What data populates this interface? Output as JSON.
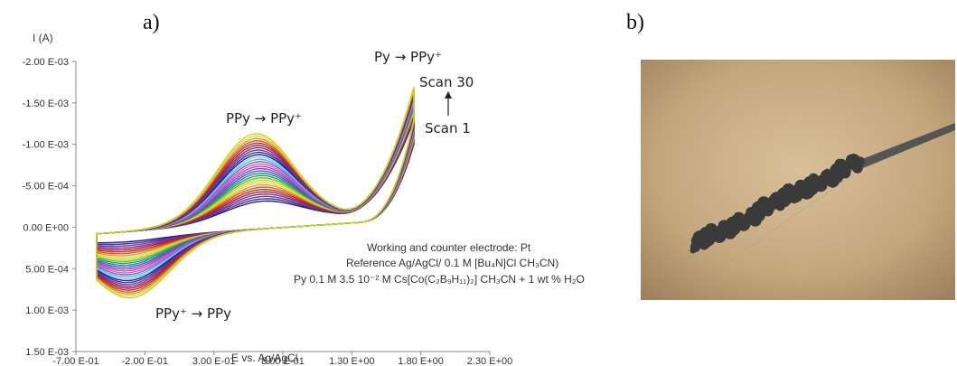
{
  "panels": {
    "a": "a)",
    "b": "b)"
  },
  "chart_data": {
    "type": "line",
    "ylabel": "I (A)",
    "xlabel": "E vs. Ag/AgCl",
    "x_ticks": [
      "-7.00 E-01",
      "-2.00 E-01",
      "3.00 E-01",
      "8.00 E-01",
      "1.30 E+00",
      "1.80 E+00",
      "2.30 E+00"
    ],
    "y_ticks": [
      "-2.00 E-03",
      "-1.50 E-03",
      "-1.00 E-03",
      "-5.00 E-04",
      "0.00 E+00",
      "5.00 E-04",
      "1.00 E-03",
      "1.50 E-03"
    ],
    "xlim": [
      -0.7,
      2.3
    ],
    "ylim": [
      -0.002,
      0.0015
    ],
    "y_axis_inverted": true,
    "scans": {
      "first": 1,
      "last": 30
    },
    "scan_colors": [
      "#1f1f8f",
      "#3a2fa8",
      "#5a3aa8",
      "#8a2a6a",
      "#b01a3a",
      "#c8282a",
      "#d05a2a",
      "#d8a020",
      "#e8d83a",
      "#b8d82a",
      "#6ac02a",
      "#2a9a5a",
      "#1a8a9a",
      "#2a6ad0",
      "#9a3ad8",
      "#d040c0",
      "#e060a0",
      "#6a6ad8",
      "#5ab0e8",
      "#7ad0f0"
    ],
    "annotations": {
      "oxidation_peak": "PPy → PPy⁺",
      "reduction_peak": "PPy⁺ → PPy",
      "monomer_oxidation": "Py → PPy⁺",
      "scan_last": "Scan 30",
      "scan_first": "Scan 1"
    },
    "conditions": [
      "Working and counter electrode: Pt",
      "Reference Ag/AgCl/ 0.1 M [Bu₄N]Cl CH₃CN)",
      "Py 0.1 M  3.5 10⁻² M Cs[Co(C₂B₉H₁₁)₂] CH₃CN + 1 wt % H₂O"
    ]
  },
  "photo": {
    "bg_color": "#c9ad86",
    "deposit_color": "#3a3a3a",
    "wire_color": "#555555"
  }
}
